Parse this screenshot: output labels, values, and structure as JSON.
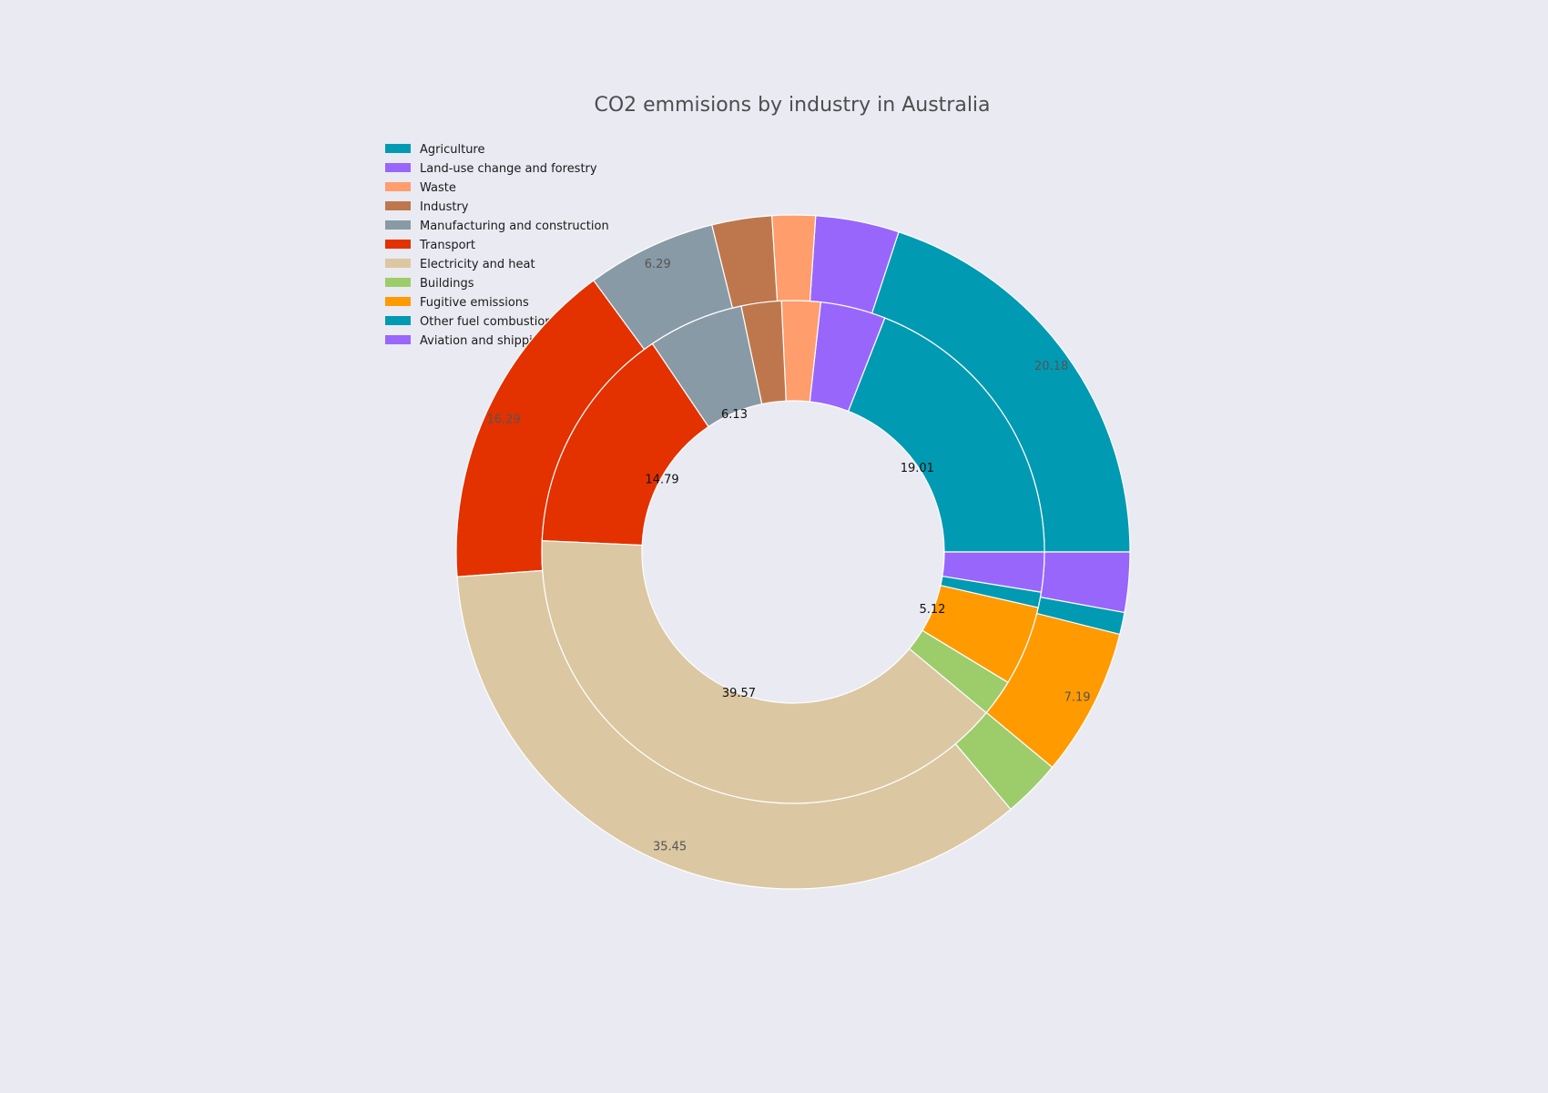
{
  "chart_data": {
    "type": "pie",
    "title": "CO2 emmisions by industry in Australia",
    "legend_position": "top-left",
    "start_angle_deg": 0,
    "direction": "counterclockwise",
    "categories": [
      "Agriculture",
      "Land-use change and forestry",
      "Waste",
      "Industry",
      "Manufacturing and construction",
      "Transport",
      "Electricity and heat",
      "Buildings",
      "Fugitive emissions",
      "Other fuel combustion",
      "Aviation and shipping"
    ],
    "colors": [
      "#019ab3",
      "#9966fc",
      "#ff9d6c",
      "#be774c",
      "#889aa5",
      "#e33100",
      "#dbc7a2",
      "#9dcd6b",
      "#ff9a00",
      "#019ab3",
      "#9966fc"
    ],
    "series": [
      {
        "name": "inner",
        "ring": "inner",
        "values": [
          19.01,
          4.18,
          2.49,
          2.57,
          6.13,
          14.79,
          39.57,
          2.36,
          5.12,
          0.99,
          2.55
        ],
        "labels": [
          "19.01",
          "",
          "",
          "",
          "6.13",
          "14.79",
          "39.57",
          "",
          "5.12",
          "",
          ""
        ]
      },
      {
        "name": "outer",
        "ring": "outer",
        "values": [
          20.18,
          4.06,
          2.1,
          2.91,
          6.29,
          16.29,
          35.45,
          2.83,
          7.19,
          1.07,
          2.91
        ],
        "labels": [
          "20.18",
          "",
          "",
          "",
          "6.29",
          "16.29",
          "35.45",
          "",
          "7.19",
          "",
          ""
        ]
      }
    ]
  }
}
